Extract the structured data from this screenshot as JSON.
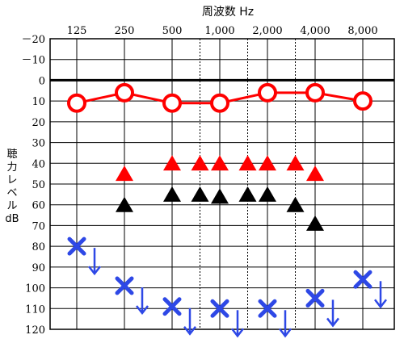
{
  "chart_data": {
    "type": "scatter",
    "title": "周波数 Hz",
    "ylabel_lines": [
      "聴",
      "力",
      "レ",
      "ベ",
      "ル",
      "dB"
    ],
    "x_tick_labels": [
      "125",
      "250",
      "500",
      "1,000",
      "2,000",
      "4,000",
      "8,000"
    ],
    "x_major_values": [
      125,
      250,
      500,
      1000,
      2000,
      4000,
      8000
    ],
    "x_minor_values": [
      750,
      1500,
      3000
    ],
    "y_tick_labels": [
      "－20",
      "－10",
      "0",
      "10",
      "20",
      "30",
      "40",
      "50",
      "60",
      "70",
      "80",
      "90",
      "100",
      "110",
      "120"
    ],
    "y_tick_values": [
      -20,
      -10,
      0,
      10,
      20,
      30,
      40,
      50,
      60,
      70,
      80,
      90,
      100,
      110,
      120
    ],
    "ylim": [
      -20,
      120
    ],
    "y_inverted": true,
    "x_scale": "log2",
    "grid": true,
    "series": [
      {
        "marker": "circle",
        "color": "#ff0000",
        "connected": true,
        "points": [
          {
            "x": 125,
            "y": 11
          },
          {
            "x": 250,
            "y": 6
          },
          {
            "x": 500,
            "y": 11
          },
          {
            "x": 1000,
            "y": 11
          },
          {
            "x": 2000,
            "y": 6
          },
          {
            "x": 4000,
            "y": 6
          },
          {
            "x": 8000,
            "y": 10
          }
        ]
      },
      {
        "marker": "triangle",
        "color": "#ff0000",
        "connected": false,
        "points": [
          {
            "x": 250,
            "y": 45
          },
          {
            "x": 500,
            "y": 40
          },
          {
            "x": 750,
            "y": 40
          },
          {
            "x": 1000,
            "y": 40
          },
          {
            "x": 1500,
            "y": 40
          },
          {
            "x": 2000,
            "y": 40
          },
          {
            "x": 3000,
            "y": 40
          },
          {
            "x": 4000,
            "y": 45
          }
        ]
      },
      {
        "marker": "triangle",
        "color": "#000000",
        "connected": false,
        "points": [
          {
            "x": 250,
            "y": 60
          },
          {
            "x": 500,
            "y": 55
          },
          {
            "x": 750,
            "y": 55
          },
          {
            "x": 1000,
            "y": 56
          },
          {
            "x": 1500,
            "y": 55
          },
          {
            "x": 2000,
            "y": 55
          },
          {
            "x": 3000,
            "y": 60
          },
          {
            "x": 4000,
            "y": 69
          }
        ]
      },
      {
        "marker": "cross-arrow",
        "color": "#2e48e6",
        "connected": false,
        "points": [
          {
            "x": 125,
            "y": 80
          },
          {
            "x": 250,
            "y": 99
          },
          {
            "x": 500,
            "y": 109
          },
          {
            "x": 1000,
            "y": 110
          },
          {
            "x": 2000,
            "y": 110
          },
          {
            "x": 4000,
            "y": 105
          },
          {
            "x": 8000,
            "y": 96
          }
        ]
      }
    ]
  }
}
